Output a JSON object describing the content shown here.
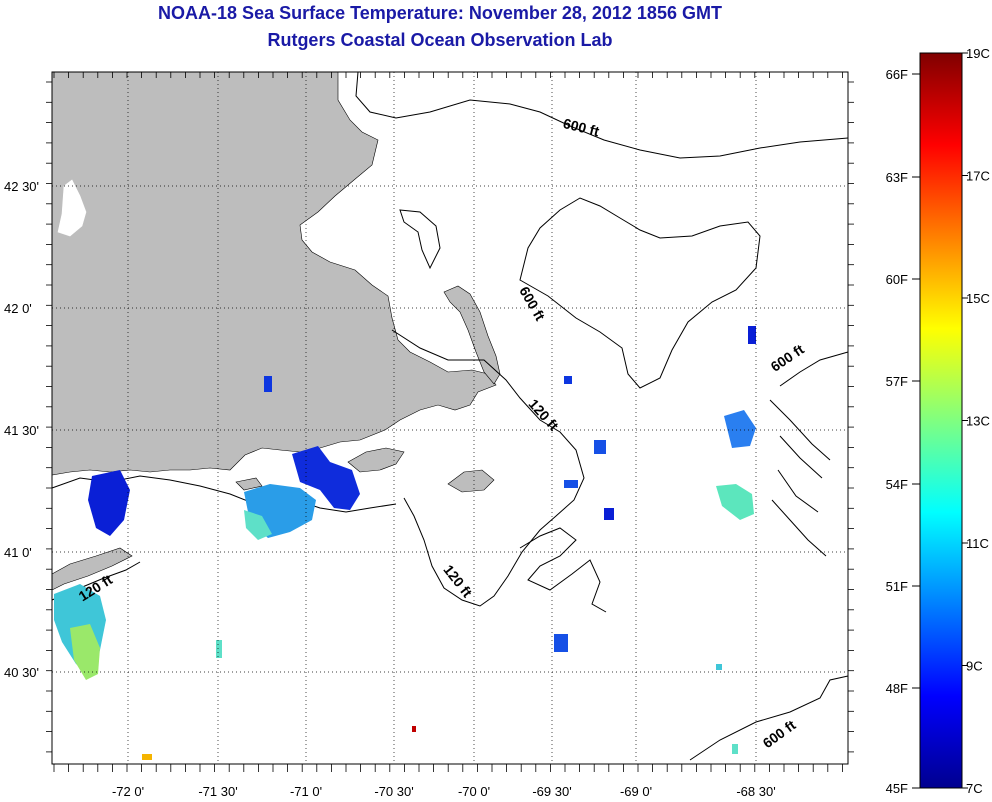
{
  "header": {
    "title": "NOAA-18 Sea Surface Temperature:  November 28, 2012 1856 GMT",
    "subtitle": "Rutgers Coastal Ocean Observation Lab"
  },
  "map": {
    "lon_labels": [
      "-72 0'",
      "-71 30'",
      "-71 0'",
      "-70 30'",
      "-70 0'",
      "-69 30'",
      "-69 0'",
      "-68 30'"
    ],
    "lat_labels": [
      "42 30'",
      "42 0'",
      "41 30'",
      "41 0'",
      "40 30'"
    ],
    "contour_labels": [
      "600 ft",
      "600 ft",
      "600 ft",
      "120 ft",
      "120 ft",
      "120 ft",
      "600 ft"
    ],
    "colors": {
      "land": "#bdbdbd",
      "frame": "#000000",
      "contour": "#000000"
    }
  },
  "colorbar": {
    "fahrenheit_labels": [
      "66F",
      "63F",
      "60F",
      "57F",
      "54F",
      "51F",
      "48F",
      "45F"
    ],
    "celsius_labels": [
      "19C",
      "17C",
      "15C",
      "13C",
      "11C",
      "9C",
      "7C"
    ],
    "stops": [
      "#00008f",
      "#0000ff",
      "#0080ff",
      "#00ffff",
      "#80ff80",
      "#ffff00",
      "#ff8000",
      "#ff0000",
      "#800000"
    ]
  }
}
